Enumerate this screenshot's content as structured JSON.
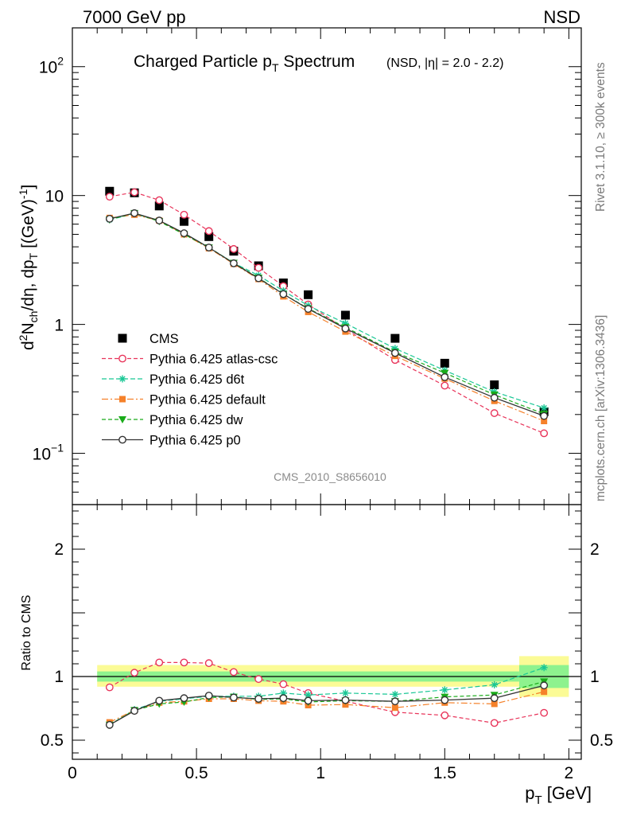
{
  "header": {
    "left": "7000 GeV pp",
    "right": "NSD"
  },
  "side_labels": {
    "rivet": "Rivet 3.1.10, ≥ 300k events",
    "mcplots": "mcplots.cern.ch [arXiv:1306.3436]"
  },
  "watermark": "CMS_2010_S8656010",
  "colors": {
    "cms": "#000000",
    "atlas_csc": "#e8345a",
    "d6t": "#19c795",
    "default": "#f5812a",
    "dw": "#1aab1a",
    "p0": "#333333",
    "band_inner": "#8ef28e",
    "band_outer": "#fbfb96"
  },
  "chart_data": [
    {
      "type": "scatter",
      "panel": "main",
      "title": "Charged Particle p_T Spectrum",
      "title_parts": {
        "main": "Charged Particle p",
        "sub": "T",
        "tail": " Spectrum",
        "note": "(NSD, |η| = 2.0 - 2.2)"
      },
      "ylabel": "d²N_ch/dη, dp_T [(GeV)⁻¹]",
      "ylabel_parts": {
        "a": "d",
        "a_sup": "2",
        "b": "N",
        "b_sub": "ch",
        "c": "/dη, dp",
        "c_sub": "T",
        "d": " [(GeV)",
        "d_sup": "-1",
        "e": "]"
      },
      "xlim": [
        0,
        2.05
      ],
      "ylim": [
        0.04,
        200
      ],
      "y_scale": "log",
      "y_ticks": [
        {
          "v": 100,
          "base": "10",
          "exp": "2"
        },
        {
          "v": 10,
          "base": "10",
          "exp": ""
        },
        {
          "v": 1,
          "base": "1",
          "exp": ""
        },
        {
          "v": 0.1,
          "base": "10",
          "exp": "−1"
        }
      ],
      "legend_position": "middle-left",
      "series": [
        {
          "key": "cms",
          "name": "CMS",
          "marker": "square",
          "x": [
            0.15,
            0.25,
            0.35,
            0.45,
            0.55,
            0.65,
            0.75,
            0.85,
            0.95,
            1.1,
            1.3,
            1.5,
            1.7,
            1.9
          ],
          "y": [
            10.8,
            10.5,
            8.3,
            6.3,
            4.8,
            3.7,
            2.85,
            2.1,
            1.7,
            1.18,
            0.78,
            0.5,
            0.34,
            0.21
          ]
        },
        {
          "key": "atlas_csc",
          "name": "Pythia 6.425 atlas-csc",
          "marker": "open-circle",
          "x": [
            0.15,
            0.25,
            0.35,
            0.45,
            0.55,
            0.65,
            0.75,
            0.85,
            0.95,
            1.1,
            1.3,
            1.5,
            1.7,
            1.9
          ],
          "y": [
            9.8,
            10.6,
            9.2,
            7.1,
            5.3,
            3.85,
            2.75,
            1.98,
            1.43,
            0.92,
            0.53,
            0.335,
            0.205,
            0.143
          ]
        },
        {
          "key": "d6t",
          "name": "Pythia 6.425 d6t",
          "marker": "star",
          "x": [
            0.15,
            0.25,
            0.35,
            0.45,
            0.55,
            0.65,
            0.75,
            0.85,
            0.95,
            1.1,
            1.3,
            1.5,
            1.7,
            1.9
          ],
          "y": [
            6.5,
            7.2,
            6.4,
            5.1,
            3.95,
            3.0,
            2.4,
            1.82,
            1.4,
            1.02,
            0.65,
            0.44,
            0.3,
            0.225
          ]
        },
        {
          "key": "default",
          "name": "Pythia 6.425 default",
          "marker": "square-small",
          "x": [
            0.15,
            0.25,
            0.35,
            0.45,
            0.55,
            0.65,
            0.75,
            0.85,
            0.95,
            1.1,
            1.3,
            1.5,
            1.7,
            1.9
          ],
          "y": [
            6.7,
            7.1,
            6.4,
            5.0,
            3.9,
            2.95,
            2.25,
            1.65,
            1.25,
            0.88,
            0.57,
            0.38,
            0.255,
            0.178
          ]
        },
        {
          "key": "dw",
          "name": "Pythia 6.425 dw",
          "marker": "triangle-down",
          "x": [
            0.15,
            0.25,
            0.35,
            0.45,
            0.55,
            0.65,
            0.75,
            0.85,
            0.95,
            1.1,
            1.3,
            1.5,
            1.7,
            1.9
          ],
          "y": [
            6.5,
            7.3,
            6.3,
            5.0,
            3.95,
            3.0,
            2.3,
            1.72,
            1.33,
            0.95,
            0.61,
            0.42,
            0.285,
            0.202
          ]
        },
        {
          "key": "p0",
          "name": "Pythia 6.425 p0",
          "marker": "open-circle-line",
          "x": [
            0.15,
            0.25,
            0.35,
            0.45,
            0.55,
            0.65,
            0.75,
            0.85,
            0.95,
            1.1,
            1.3,
            1.5,
            1.7,
            1.9
          ],
          "y": [
            6.6,
            7.3,
            6.4,
            5.1,
            3.95,
            2.98,
            2.28,
            1.72,
            1.32,
            0.93,
            0.6,
            0.39,
            0.27,
            0.195
          ]
        }
      ]
    },
    {
      "type": "line",
      "panel": "ratio",
      "ylabel": "Ratio to CMS",
      "xlabel": "p_T [GeV]",
      "xlabel_parts": {
        "a": "p",
        "sub": "T",
        "b": " [GeV]"
      },
      "xlim": [
        0,
        2.05
      ],
      "ylim": [
        0.35,
        2.35
      ],
      "x_ticks": [
        {
          "v": 0,
          "label": "0"
        },
        {
          "v": 0.5,
          "label": "0.5"
        },
        {
          "v": 1,
          "label": "1"
        },
        {
          "v": 1.5,
          "label": "1.5"
        },
        {
          "v": 2,
          "label": "2"
        }
      ],
      "y_ticks": [
        {
          "v": 0.5,
          "label": "0.5"
        },
        {
          "v": 1,
          "label": "1"
        },
        {
          "v": 2,
          "label": "2"
        }
      ],
      "reference_line": 1,
      "bands": [
        {
          "x0": 0.1,
          "x1": 1.8,
          "outer": [
            0.92,
            1.09
          ],
          "inner": [
            0.96,
            1.04
          ]
        },
        {
          "x0": 1.8,
          "x1": 2.0,
          "outer": [
            0.84,
            1.16
          ],
          "inner": [
            0.91,
            1.09
          ]
        }
      ],
      "series": [
        {
          "key": "atlas_csc",
          "x": [
            0.15,
            0.25,
            0.35,
            0.45,
            0.55,
            0.65,
            0.75,
            0.85,
            0.95,
            1.3,
            1.5,
            1.7,
            1.9
          ],
          "y": [
            0.915,
            1.03,
            1.11,
            1.11,
            1.105,
            1.035,
            0.98,
            0.94,
            0.87,
            0.72,
            0.695,
            0.635,
            0.715
          ]
        },
        {
          "key": "d6t",
          "x": [
            0.15,
            0.25,
            0.35,
            0.45,
            0.55,
            0.65,
            0.75,
            0.85,
            0.95,
            1.1,
            1.3,
            1.5,
            1.7,
            1.9
          ],
          "y": [
            0.62,
            0.74,
            0.805,
            0.825,
            0.845,
            0.845,
            0.845,
            0.87,
            0.855,
            0.87,
            0.86,
            0.895,
            0.935,
            1.07
          ]
        },
        {
          "key": "default",
          "x": [
            0.15,
            0.25,
            0.35,
            0.45,
            0.55,
            0.65,
            0.75,
            0.85,
            0.95,
            1.1,
            1.3,
            1.5,
            1.7,
            1.9
          ],
          "y": [
            0.64,
            0.735,
            0.795,
            0.805,
            0.825,
            0.825,
            0.81,
            0.805,
            0.775,
            0.78,
            0.755,
            0.795,
            0.785,
            0.88
          ]
        },
        {
          "key": "dw",
          "x": [
            0.15,
            0.25,
            0.35,
            0.45,
            0.55,
            0.65,
            0.75,
            0.85,
            0.95,
            1.1,
            1.3,
            1.5,
            1.7,
            1.9
          ],
          "y": [
            0.62,
            0.735,
            0.785,
            0.8,
            0.835,
            0.84,
            0.82,
            0.825,
            0.8,
            0.81,
            0.805,
            0.84,
            0.855,
            0.96
          ]
        },
        {
          "key": "p0",
          "x": [
            0.15,
            0.25,
            0.35,
            0.45,
            0.55,
            0.65,
            0.75,
            0.85,
            0.95,
            1.1,
            1.3,
            1.5,
            1.7,
            1.9
          ],
          "y": [
            0.62,
            0.73,
            0.81,
            0.83,
            0.85,
            0.835,
            0.825,
            0.83,
            0.81,
            0.815,
            0.805,
            0.815,
            0.83,
            0.93
          ]
        }
      ]
    }
  ]
}
